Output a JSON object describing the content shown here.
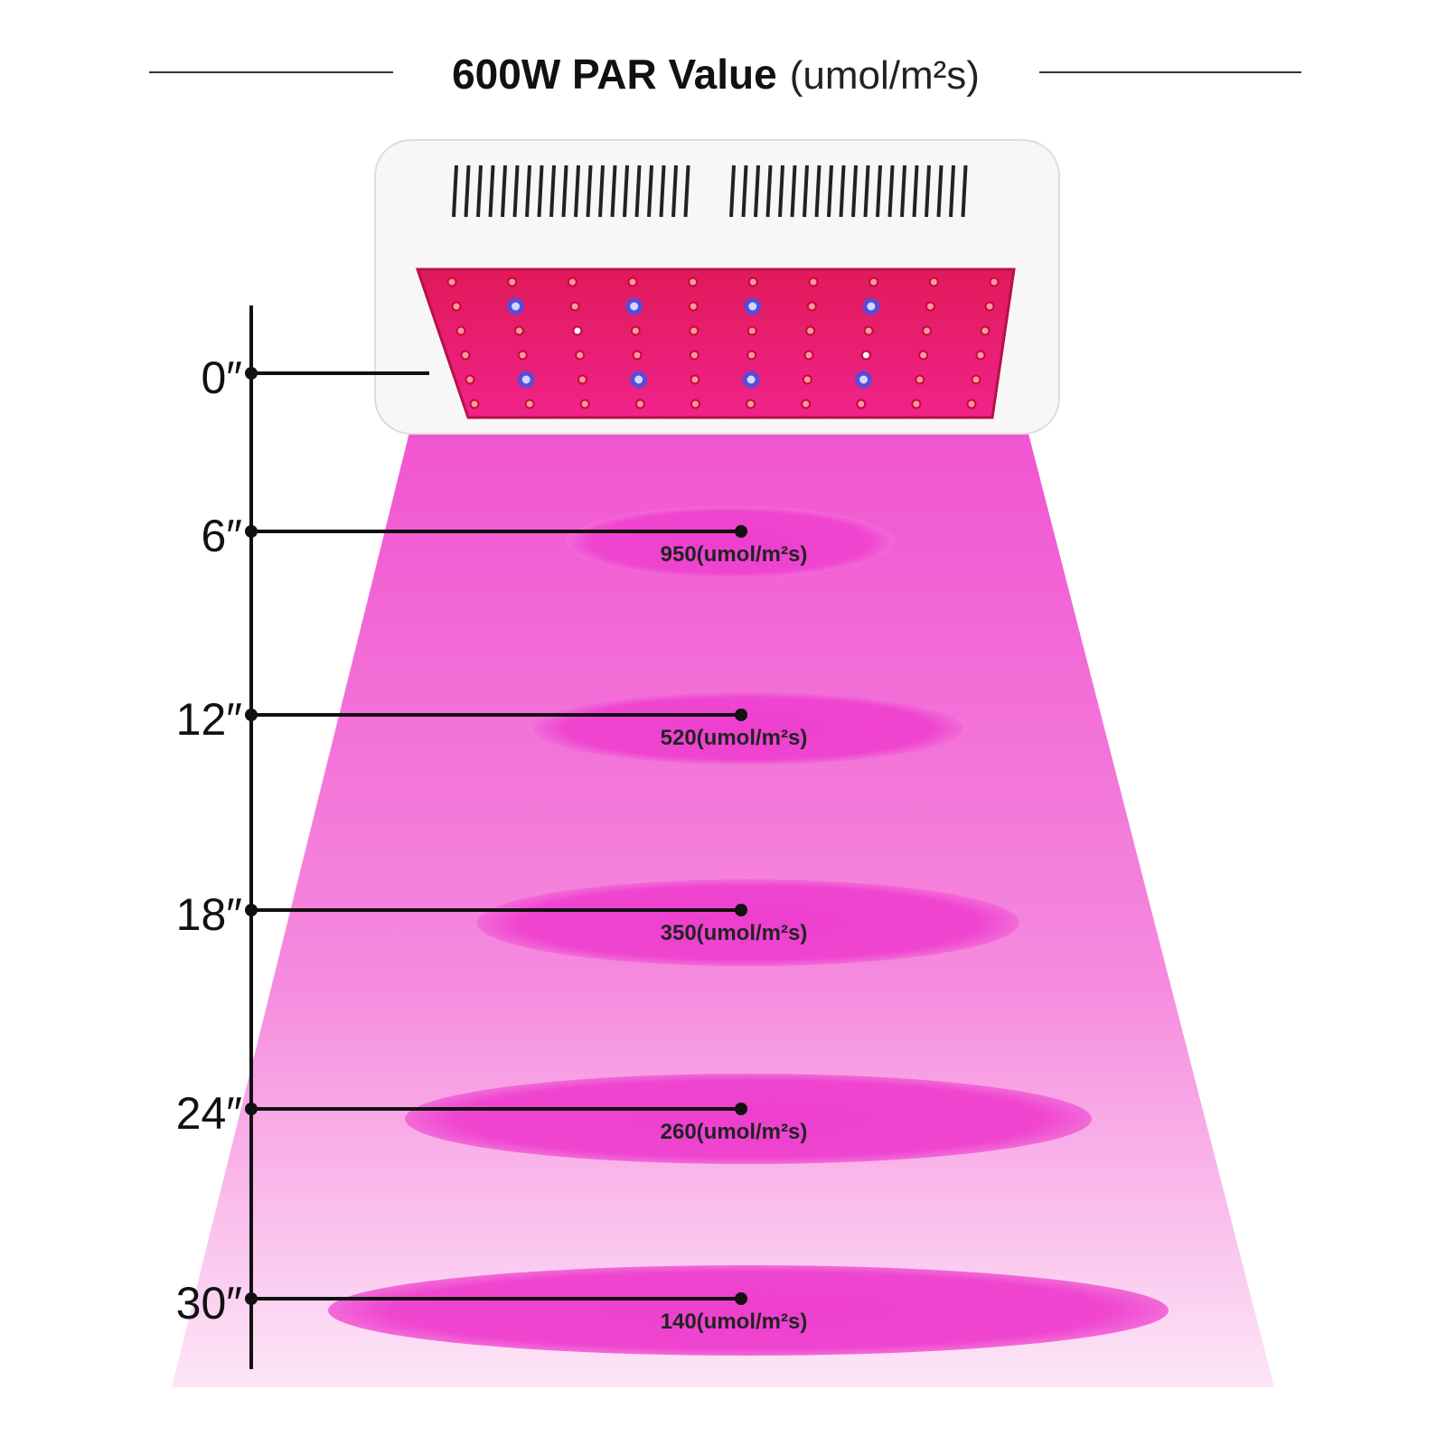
{
  "title": {
    "main": "600W PAR Value",
    "unit": "(umol/m²s)"
  },
  "levels": [
    {
      "distance": "0″"
    },
    {
      "distance": "6″",
      "reading": "950(umol/m²s)"
    },
    {
      "distance": "12″",
      "reading": "520(umol/m²s)"
    },
    {
      "distance": "18″",
      "reading": "350(umol/m²s)"
    },
    {
      "distance": "24″",
      "reading": "260(umol/m²s)"
    },
    {
      "distance": "30″",
      "reading": "140(umol/m²s)"
    }
  ]
}
